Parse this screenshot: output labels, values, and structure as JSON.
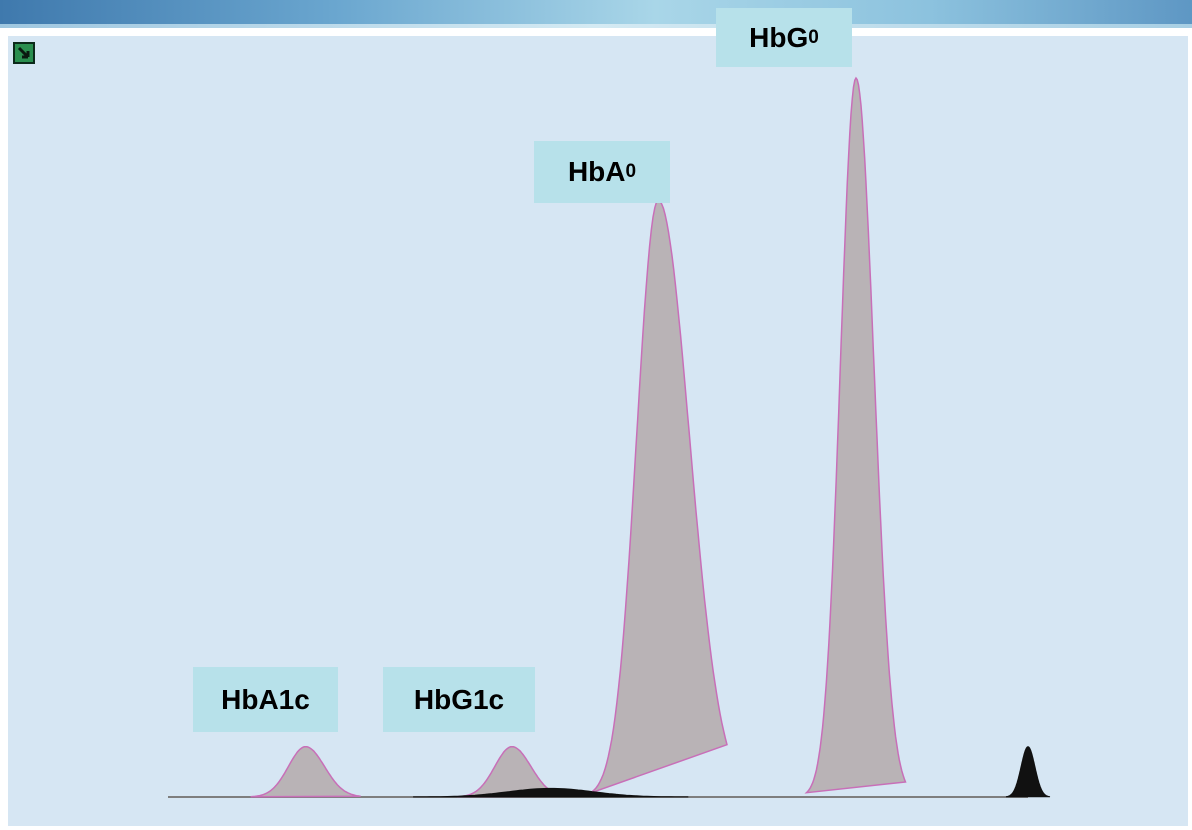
{
  "chart_data": {
    "type": "area",
    "title": "",
    "xlabel": "",
    "ylabel": "",
    "grid": false,
    "peaks": [
      {
        "label": "HbA1c",
        "label_main": "HbA1c",
        "label_sub": "",
        "x": 0.16,
        "height": 0.07,
        "width": 0.02
      },
      {
        "label": "HbG1c",
        "label_main": "HbG1c",
        "label_sub": "",
        "x": 0.4,
        "height": 0.07,
        "width": 0.02
      },
      {
        "label": "HbA0",
        "label_main": "HbA",
        "label_sub": "0",
        "x": 0.57,
        "height": 0.83,
        "width": 0.025
      },
      {
        "label": "HbG0",
        "label_main": "HbG",
        "label_sub": "0",
        "x": 0.8,
        "height": 1.0,
        "width": 0.018
      }
    ],
    "minor_peaks": [
      {
        "x": 0.445,
        "height": 0.012,
        "width": 0.05
      },
      {
        "x": 1.0,
        "height": 0.07,
        "width": 0.008
      }
    ],
    "colors": {
      "fill": "#b9b3b6",
      "outline": "#c86fb8",
      "baseline": "#7e7e7e",
      "dark_fill": "#111111"
    }
  }
}
